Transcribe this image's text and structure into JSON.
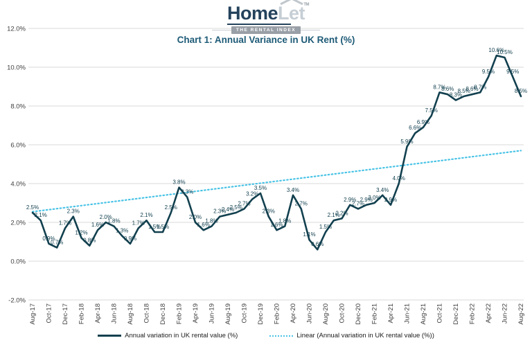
{
  "logo": {
    "brand_primary": "Home",
    "brand_secondary": "Let",
    "trademark": "TM",
    "tagline": "THE RENTAL INDEX"
  },
  "title": "Chart 1: Annual Variance in UK Rent (%)",
  "colors": {
    "series_line": "#12404f",
    "trend_line": "#49c3e6",
    "title_text": "#1e5b77",
    "gridline": "#d9d9d9",
    "axis_text": "#404040",
    "data_label_text": "#12404f",
    "logo_navy": "#24425c",
    "logo_silver": "#c6ced5",
    "tagline_bg": "#999fa6"
  },
  "legend": {
    "series_label": "Annual variation in UK rental value (%)",
    "trend_label": "Linear (Annual variation in UK rental value (%))"
  },
  "chart_data": {
    "type": "line",
    "title": "Chart 1: Annual Variance in UK Rent (%)",
    "xlabel": "",
    "ylabel": "",
    "ylim": [
      -2,
      12
    ],
    "grid": true,
    "legend_position": "bottom",
    "y_ticks": [
      "12.0%",
      "10.0%",
      "8.0%",
      "6.0%",
      "4.0%",
      "2.0%",
      "0.0%",
      "-2.0%"
    ],
    "x_tick_labels": [
      "Aug-17",
      "Oct-17",
      "Dec-17",
      "Feb-18",
      "Apr-18",
      "Jun-18",
      "Aug-18",
      "Oct-18",
      "Dec-18",
      "Feb-19",
      "Apr-19",
      "Jun-19",
      "Aug-19",
      "Oct-19",
      "Dec-19",
      "Feb-20",
      "Apr-20",
      "Jun-20",
      "Aug-20",
      "Oct-20",
      "Dec-20",
      "Feb-21",
      "Apr-21",
      "Jun-21",
      "Aug-21",
      "Oct-21",
      "Dec-21",
      "Feb-22",
      "Apr-22",
      "Jun-22",
      "Aug-22"
    ],
    "x": [
      "Aug-17",
      "Sep-17",
      "Oct-17",
      "Nov-17",
      "Dec-17",
      "Jan-18",
      "Feb-18",
      "Mar-18",
      "Apr-18",
      "May-18",
      "Jun-18",
      "Jul-18",
      "Aug-18",
      "Sep-18",
      "Oct-18",
      "Nov-18",
      "Dec-18",
      "Jan-19",
      "Feb-19",
      "Mar-19",
      "Apr-19",
      "May-19",
      "Jun-19",
      "Jul-19",
      "Aug-19",
      "Sep-19",
      "Oct-19",
      "Nov-19",
      "Dec-19",
      "Jan-20",
      "Feb-20",
      "Mar-20",
      "Apr-20",
      "May-20",
      "Jun-20",
      "Jul-20",
      "Aug-20",
      "Sep-20",
      "Oct-20",
      "Nov-20",
      "Dec-20",
      "Jan-21",
      "Feb-21",
      "Mar-21",
      "Apr-21",
      "May-21",
      "Jun-21",
      "Jul-21",
      "Aug-21",
      "Sep-21",
      "Oct-21",
      "Nov-21",
      "Dec-21",
      "Jan-22",
      "Feb-22",
      "Mar-22",
      "Apr-22",
      "May-22",
      "Jun-22",
      "Jul-22",
      "Aug-22"
    ],
    "series": [
      {
        "name": "Annual variation in UK rental value (%)",
        "values": [
          2.5,
          2.1,
          0.9,
          0.7,
          1.7,
          2.3,
          1.2,
          0.8,
          1.6,
          2.0,
          1.8,
          1.3,
          0.9,
          1.7,
          2.1,
          1.5,
          1.5,
          2.5,
          3.8,
          3.3,
          2.0,
          1.6,
          1.8,
          2.3,
          2.4,
          2.5,
          2.7,
          3.2,
          3.5,
          2.3,
          1.6,
          1.8,
          3.4,
          2.7,
          1.1,
          0.6,
          1.5,
          2.1,
          2.2,
          2.9,
          2.7,
          2.9,
          3.0,
          3.4,
          2.9,
          4.0,
          5.9,
          6.6,
          6.9,
          7.5,
          8.7,
          8.6,
          8.3,
          8.5,
          8.6,
          8.7,
          9.5,
          10.6,
          10.5,
          9.5,
          8.5
        ]
      }
    ],
    "data_labels": [
      "2.5%",
      "2.1%",
      "0.9%",
      "0.7%",
      "1.7%",
      "2.3%",
      "1.2%",
      "0.8%",
      "1.6%",
      "2.0%",
      "1.8%",
      "1.3%",
      "0.9%",
      "1.7%",
      "2.1%",
      "1.5%",
      "1.5%",
      "2.5%",
      "3.8%",
      "3.3%",
      "2.0%",
      "1.6%",
      "1.8%",
      "2.3%",
      "2.4%",
      "2.5%",
      "2.7%",
      "3.2%",
      "3.5%",
      "2.3%",
      "1.6%",
      "1.8%",
      "3.4%",
      "2.7%",
      "1.1%",
      "0.6%",
      "1.5%",
      "2.1%",
      "2.2%",
      "2.9%",
      "2.7%",
      "2.9%",
      "3.0%",
      "3.4%",
      "2.9%",
      "4.0%",
      "5.9%",
      "6.6%",
      "6.9%",
      "7.5%",
      "8.7%",
      "8.6%",
      "8.3%",
      "8.5%",
      "8.6%",
      "8.7%",
      "9.5%",
      "10.6%",
      "10.5%",
      "9.5%",
      "8.5%"
    ],
    "trend": {
      "name": "Linear (Annual variation in UK rental value (%))",
      "start_value": 2.55,
      "end_value": 5.7,
      "style": "dotted"
    }
  }
}
